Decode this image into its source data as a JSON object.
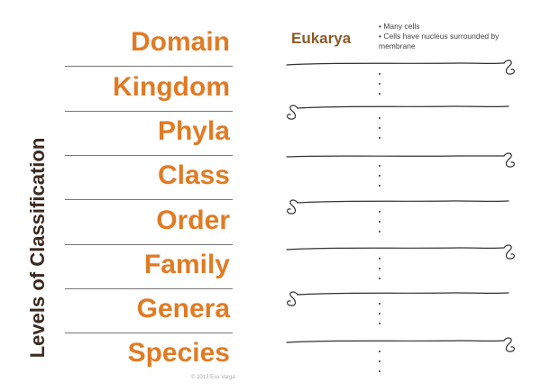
{
  "title": "Levels of Classification",
  "levels": [
    "Domain",
    "Kingdom",
    "Phyla",
    "Class",
    "Order",
    "Family",
    "Genera",
    "Species"
  ],
  "example": {
    "name": "Eukarya",
    "notes": [
      "Many cells",
      "Cells have nucleus surrounded by membrane"
    ]
  },
  "copyright": "© 2013 Eva Varga",
  "colors": {
    "level_text": "#e07b24",
    "title_text": "#3b2a20",
    "example_name": "#8a5a28"
  }
}
